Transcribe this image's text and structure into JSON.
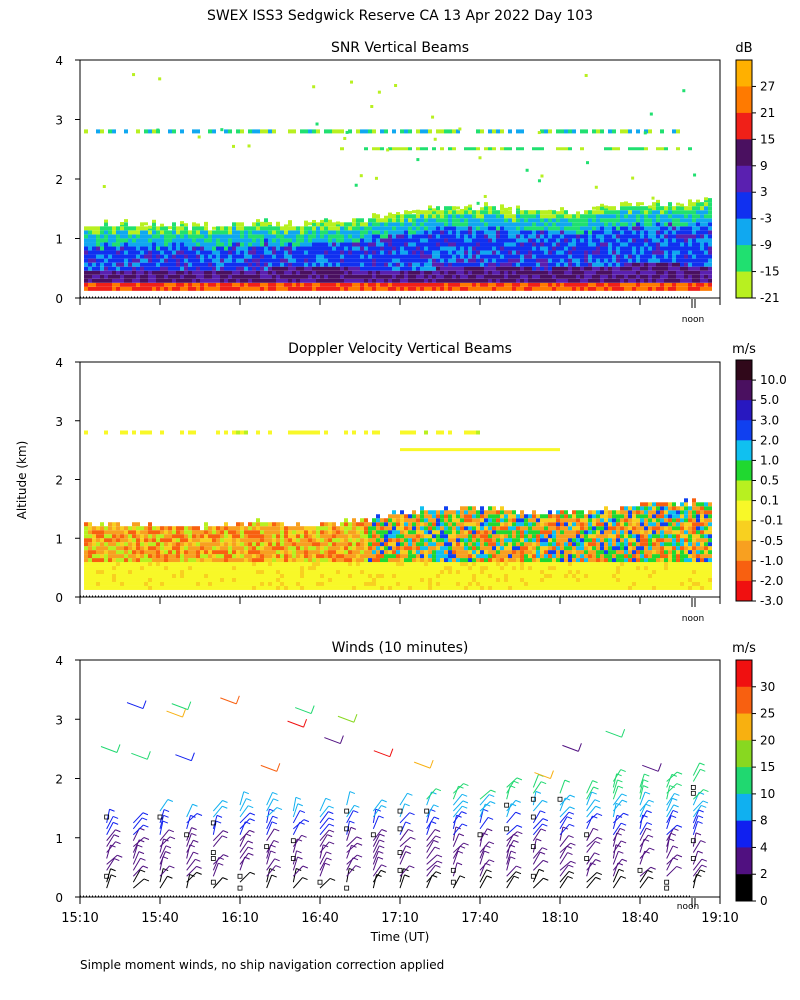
{
  "page": {
    "title": "SWEX ISS3 Sedgwick Reserve CA  13 Apr 2022 Day 103",
    "footnote": "Simple moment winds, no ship navigation correction applied",
    "y_axis_label": "Altitude (km)",
    "x_axis_label": "Time (UT)"
  },
  "chart_data": [
    {
      "type": "heatmap",
      "id": "snr",
      "title": "SNR Vertical Beams",
      "xlabel": "Time (UT)",
      "ylabel": "Altitude (km)",
      "xlim": [
        "15:10",
        "19:10"
      ],
      "ylim": [
        0,
        4
      ],
      "yticks": [
        "0",
        "1",
        "2",
        "3",
        "4"
      ],
      "noon_marker": "noon",
      "colorbar": {
        "unit": "dB",
        "labels": [
          "27",
          "21",
          "15",
          "9",
          "3",
          "-3",
          "-9",
          "-15",
          "-21"
        ],
        "colors": [
          "#ffb000",
          "#ff7a00",
          "#f02018",
          "#4a1060",
          "#5a20b0",
          "#1030f0",
          "#10a8f0",
          "#20e070",
          "#b8f020"
        ]
      },
      "layers": [
        {
          "name": "boundary layer top",
          "top_km": [
            1.2,
            1.2,
            1.15,
            1.25,
            1.2,
            1.3,
            1.45,
            1.5,
            1.4,
            1.45,
            1.55,
            1.6
          ]
        },
        {
          "name": "high-snr base",
          "top_km": [
            0.45,
            0.45,
            0.4,
            0.45,
            0.5,
            0.45,
            0.45,
            0.5,
            0.45,
            0.5,
            0.55,
            0.5
          ]
        },
        {
          "name": "elevated layer",
          "altitude_km": 2.8
        }
      ]
    },
    {
      "type": "heatmap",
      "id": "doppler",
      "title": "Doppler Velocity Vertical Beams",
      "xlabel": "Time (UT)",
      "ylabel": "Altitude (km)",
      "xlim": [
        "15:10",
        "19:10"
      ],
      "ylim": [
        0,
        4
      ],
      "yticks": [
        "0",
        "1",
        "2",
        "3",
        "4"
      ],
      "noon_marker": "noon",
      "colorbar": {
        "unit": "m/s",
        "labels": [
          "10.0",
          "5.0",
          "3.0",
          "2.0",
          "1.0",
          "0.5",
          "0.1",
          "-0.1",
          "-0.5",
          "-1.0",
          "-2.0",
          "-3.0"
        ],
        "colors": [
          "#30081a",
          "#4a1060",
          "#2818c0",
          "#1040f0",
          "#10c0f0",
          "#20d830",
          "#b8f020",
          "#f8f828",
          "#f8d020",
          "#f8a020",
          "#f86010",
          "#f01010"
        ]
      }
    },
    {
      "type": "scatter",
      "id": "winds",
      "title": "Winds (10 minutes)",
      "xlabel": "Time (UT)",
      "ylabel": "Altitude (km)",
      "xlim": [
        "15:10",
        "19:10"
      ],
      "ylim": [
        0,
        4
      ],
      "xticks": [
        "15:10",
        "15:40",
        "16:10",
        "16:40",
        "17:10",
        "17:40",
        "18:10",
        "18:40",
        "19:10"
      ],
      "yticks": [
        "0",
        "1",
        "2",
        "3",
        "4"
      ],
      "noon_marker": "noon",
      "colorbar": {
        "unit": "m/s",
        "labels": [
          "30",
          "25",
          "20",
          "15",
          "10",
          "8",
          "4",
          "2",
          "0"
        ],
        "colors": [
          "#f01010",
          "#f86010",
          "#f8b010",
          "#88d820",
          "#20d870",
          "#10b0f0",
          "#1020f0",
          "#501080",
          "#000000"
        ]
      },
      "profile_times": [
        "15:20",
        "15:30",
        "15:40",
        "15:50",
        "16:00",
        "16:10",
        "16:20",
        "16:30",
        "16:40",
        "16:50",
        "17:00",
        "17:10",
        "17:20",
        "17:30",
        "17:40",
        "17:50",
        "18:00",
        "18:10",
        "18:20",
        "18:30",
        "18:40",
        "18:50",
        "19:00"
      ]
    }
  ]
}
